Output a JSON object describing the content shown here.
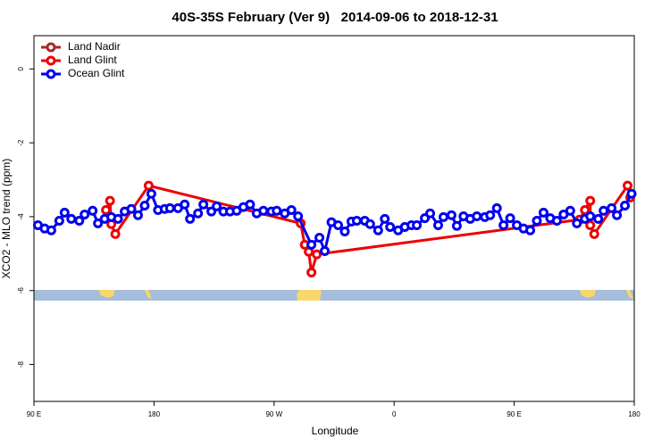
{
  "chart_data": {
    "type": "line",
    "title": "40S-35S February (Ver 9)   2014-09-06 to 2018-12-31",
    "xlabel": "Longitude",
    "ylabel": "XCO2 - MLO trend (ppm)",
    "xlim": [
      90,
      540
    ],
    "ylim": [
      -9,
      0.9
    ],
    "xticks": [
      {
        "value": 90,
        "label": "90 E"
      },
      180,
      {
        "value": 270,
        "label": "90 W"
      },
      {
        "value": 360,
        "label": "0"
      },
      {
        "value": 450,
        "label": "90 E"
      },
      {
        "value": 540,
        "label": "180"
      }
    ],
    "yticks": [
      0,
      -2,
      -4,
      -6,
      -8
    ],
    "legend": "top-left",
    "series": [
      {
        "name": "Land Nadir",
        "color": "#a52a2a",
        "x": [],
        "values": []
      },
      {
        "name": "Land Glint",
        "color": "#ee0000",
        "x": [
          144,
          147,
          148,
          151,
          176,
          290,
          293,
          296,
          298,
          302,
          499,
          503,
          507,
          507,
          510,
          535,
          537
        ],
        "values": [
          -3.82,
          -3.57,
          -4.2,
          -4.47,
          -3.16,
          -4.18,
          -4.76,
          -4.95,
          -5.51,
          -5.02,
          -4.08,
          -3.82,
          -3.57,
          -4.23,
          -4.47,
          -3.16,
          -3.48
        ]
      },
      {
        "name": "Ocean Glint",
        "color": "#0000ee",
        "x": [
          93,
          98,
          103,
          109,
          113,
          118,
          124,
          128,
          134,
          138,
          143,
          148,
          153,
          158,
          163,
          168,
          173,
          178,
          183,
          188,
          192,
          198,
          203,
          207,
          213,
          217,
          223,
          227,
          232,
          237,
          242,
          247,
          252,
          257,
          262,
          268,
          272,
          278,
          283,
          288,
          298,
          304,
          308,
          313,
          318,
          323,
          328,
          332,
          338,
          342,
          348,
          353,
          357,
          363,
          368,
          373,
          377,
          383,
          387,
          393,
          397,
          403,
          407,
          412,
          417,
          422,
          428,
          432,
          437,
          442,
          447,
          452,
          457,
          462,
          467,
          472,
          477,
          482,
          487,
          492,
          497,
          503,
          507,
          513,
          517,
          523,
          527,
          533,
          538
        ],
        "values": [
          -4.23,
          -4.32,
          -4.37,
          -4.11,
          -3.89,
          -4.06,
          -4.11,
          -3.94,
          -3.84,
          -4.18,
          -4.06,
          -4.01,
          -4.06,
          -3.86,
          -3.79,
          -3.96,
          -3.7,
          -3.38,
          -3.82,
          -3.79,
          -3.77,
          -3.77,
          -3.67,
          -4.06,
          -3.91,
          -3.67,
          -3.86,
          -3.72,
          -3.86,
          -3.86,
          -3.84,
          -3.74,
          -3.67,
          -3.91,
          -3.84,
          -3.86,
          -3.84,
          -3.91,
          -3.82,
          -3.99,
          -4.76,
          -4.57,
          -4.93,
          -4.15,
          -4.23,
          -4.4,
          -4.13,
          -4.11,
          -4.11,
          -4.2,
          -4.37,
          -4.06,
          -4.28,
          -4.37,
          -4.28,
          -4.23,
          -4.23,
          -4.04,
          -3.91,
          -4.23,
          -4.01,
          -3.96,
          -4.25,
          -3.99,
          -4.06,
          -3.99,
          -4.01,
          -3.96,
          -3.77,
          -4.23,
          -4.04,
          -4.23,
          -4.32,
          -4.37,
          -4.11,
          -3.89,
          -4.04,
          -4.11,
          -3.94,
          -3.84,
          -4.18,
          -4.06,
          -3.99,
          -4.06,
          -3.84,
          -3.77,
          -3.96,
          -3.7,
          -3.38
        ]
      }
    ]
  }
}
